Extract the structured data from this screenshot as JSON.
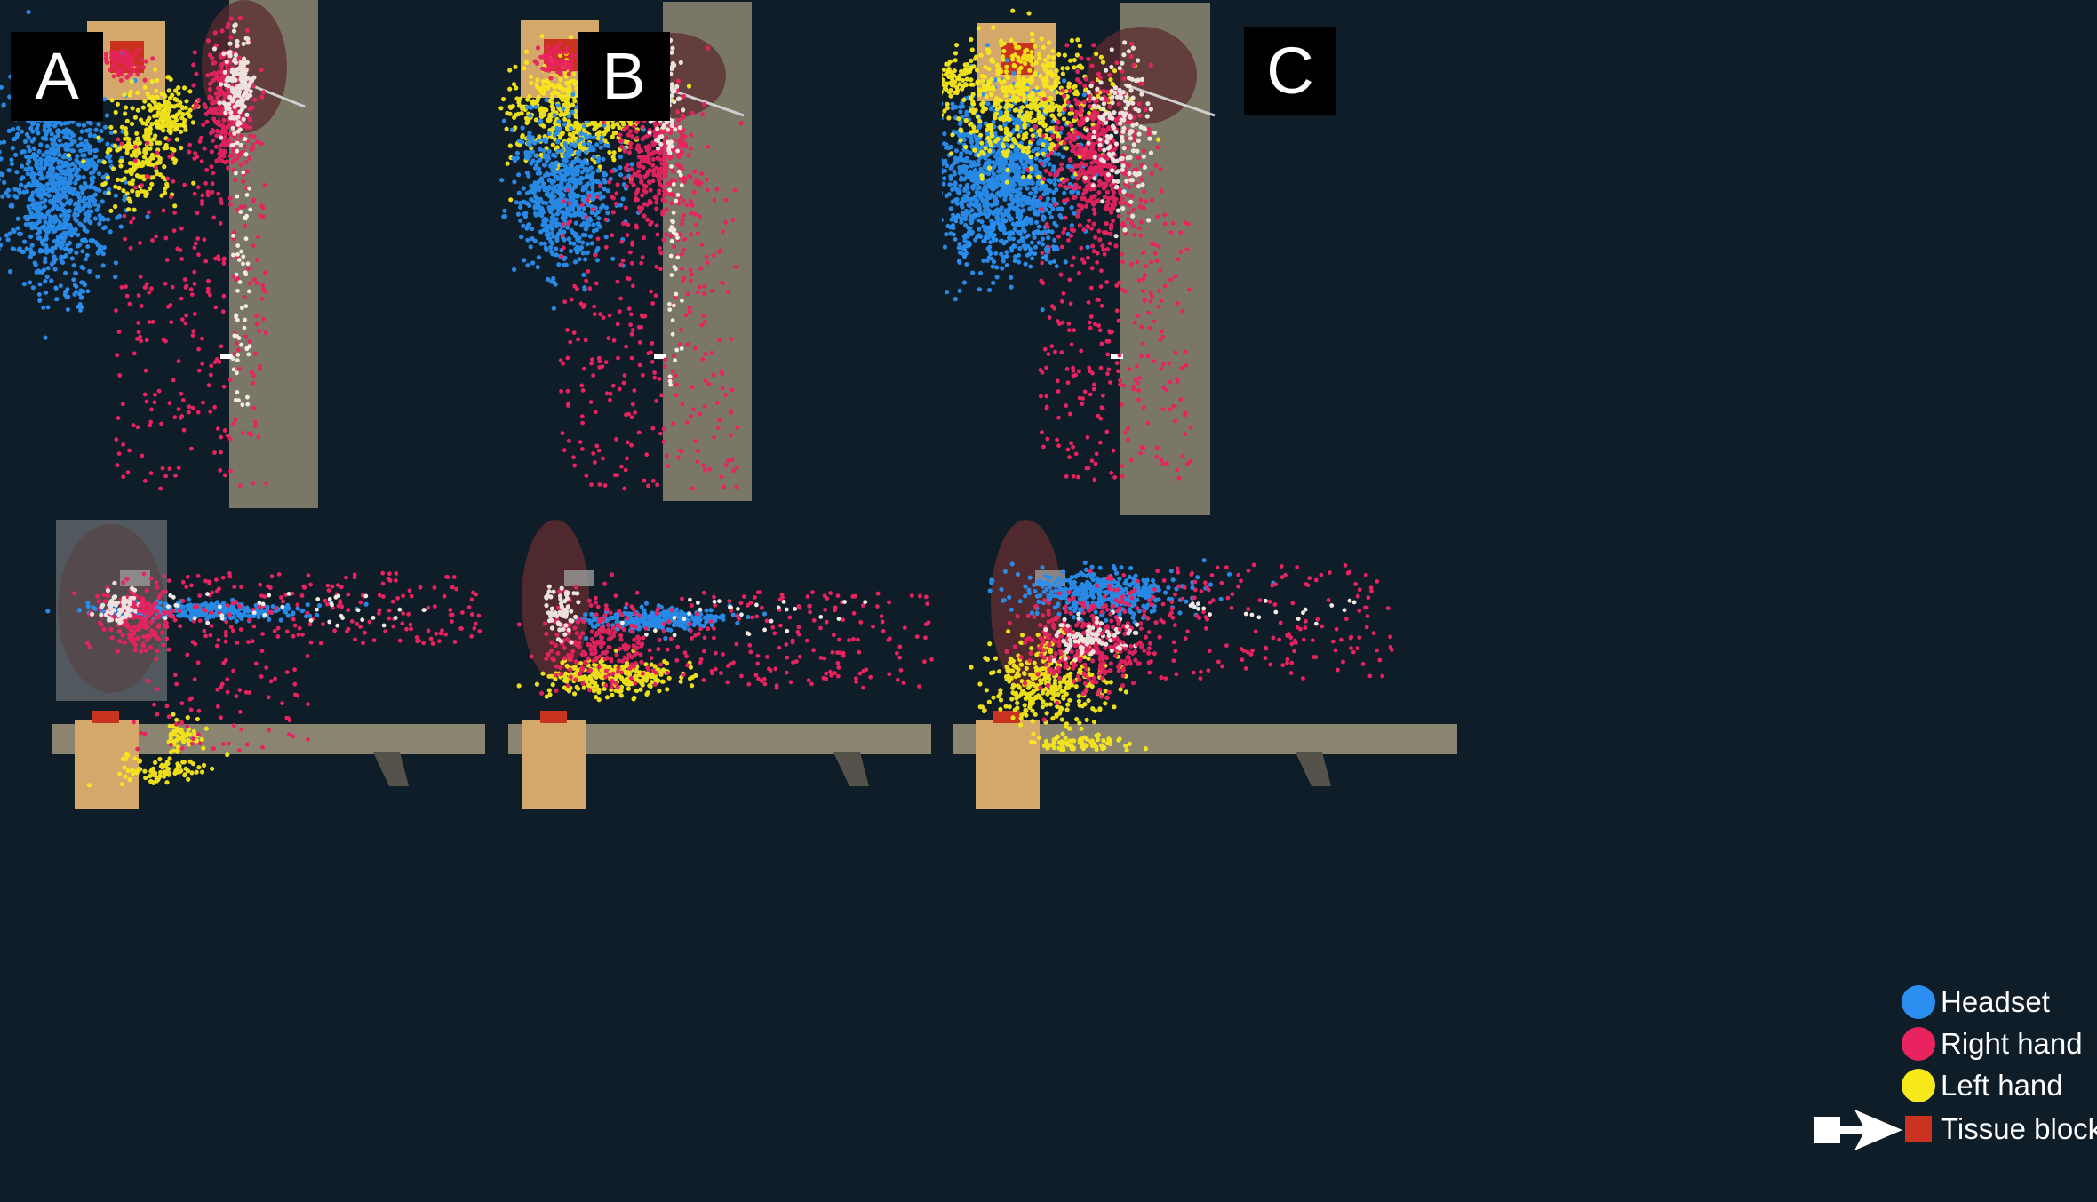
{
  "panel_labels": [
    "A",
    "B",
    "C"
  ],
  "legend": {
    "items": [
      {
        "label": "Headset",
        "color": "#2a8ff0",
        "shape": "circle"
      },
      {
        "label": "Right hand",
        "color": "#e8235f",
        "shape": "circle"
      },
      {
        "label": "Left hand",
        "color": "#f7e81a",
        "shape": "circle"
      },
      {
        "label": "Tissue block",
        "color": "#c8321e",
        "shape": "square",
        "marker": "white-arrow-icon"
      }
    ]
  },
  "colors": {
    "background": "#0f1d29",
    "headset": "#2a8ff0",
    "right_hand": "#e8235f",
    "left_hand": "#f7e81a",
    "tissue_block": "#c8321e",
    "block_base": "#d4a76a",
    "table": "#8b8470",
    "kidney": "#5a2c2e",
    "needle_path": "#f2ebe4"
  },
  "views": [
    "top",
    "side"
  ]
}
